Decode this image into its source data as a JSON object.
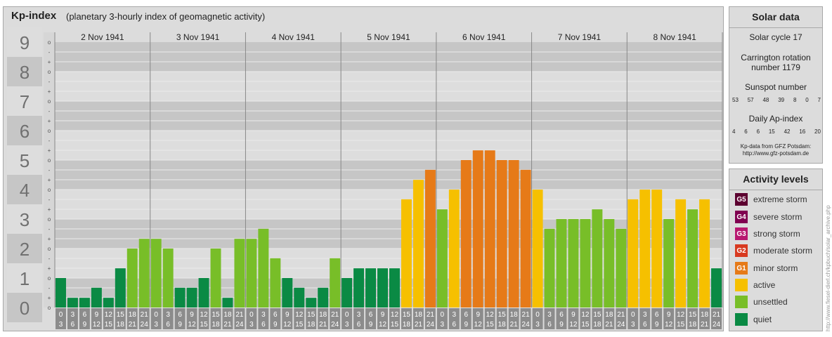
{
  "header": {
    "title": "Kp-index",
    "subtitle": "(planetary 3-hourly index of geomagnetic activity)"
  },
  "solar": {
    "title": "Solar data",
    "cycle": "Solar cycle 17",
    "carrington_line1": "Carrington rotation",
    "carrington_line2": "number 1179",
    "sunspot_title": "Sunspot number",
    "sunspot_values": [
      "53",
      "57",
      "48",
      "39",
      "8",
      "0",
      "7"
    ],
    "ap_title": "Daily Ap-index",
    "ap_values": [
      "4",
      "6",
      "6",
      "15",
      "42",
      "16",
      "20"
    ],
    "source_line1": "Kp-data from GFZ Potsdam:",
    "source_line2": "http://www.gfz-potsdam.de"
  },
  "legend": {
    "title": "Activity levels",
    "items": [
      {
        "badge": "G5",
        "label": "extreme storm",
        "color": "#5c0030"
      },
      {
        "badge": "G4",
        "label": "severe storm",
        "color": "#800050"
      },
      {
        "badge": "G3",
        "label": "strong storm",
        "color": "#b81870"
      },
      {
        "badge": "G2",
        "label": "moderate storm",
        "color": "#d83a20"
      },
      {
        "badge": "G1",
        "label": "minor storm",
        "color": "#e67a18"
      },
      {
        "badge": "",
        "label": "active",
        "color": "#f6c000"
      },
      {
        "badge": "",
        "label": "unsettled",
        "color": "#78be28"
      },
      {
        "badge": "",
        "label": "quiet",
        "color": "#0a8a44"
      }
    ]
  },
  "watermark": "http://www.fiesel-dierl.ch/kpbuch/solar_archive.php",
  "chart_data": {
    "type": "bar",
    "title": "Kp-index",
    "ylim": [
      0,
      9
    ],
    "y_ticks": [
      "0",
      "1",
      "2",
      "3",
      "4",
      "5",
      "6",
      "7",
      "8",
      "9"
    ],
    "sub_ticks": [
      "o",
      "+",
      "-"
    ],
    "days": [
      "2 Nov 1941",
      "3 Nov 1941",
      "4 Nov 1941",
      "5 Nov 1941",
      "6 Nov 1941",
      "7 Nov 1941",
      "8 Nov 1941"
    ],
    "interval_start": [
      "0",
      "3",
      "6",
      "9",
      "12",
      "15",
      "18",
      "21"
    ],
    "interval_end": [
      "3",
      "6",
      "9",
      "12",
      "15",
      "18",
      "21",
      "24"
    ],
    "values": [
      [
        1.0,
        0.33,
        0.33,
        0.67,
        0.33,
        1.33,
        2.0,
        2.33
      ],
      [
        2.33,
        2.0,
        0.67,
        0.67,
        1.0,
        2.0,
        0.33,
        2.33
      ],
      [
        2.33,
        2.67,
        1.67,
        1.0,
        0.67,
        0.33,
        0.67,
        1.67
      ],
      [
        1.0,
        1.33,
        1.33,
        1.33,
        1.33,
        3.67,
        4.33,
        4.67
      ],
      [
        3.33,
        4.0,
        5.0,
        5.33,
        5.33,
        5.0,
        5.0,
        4.67
      ],
      [
        4.0,
        2.67,
        3.0,
        3.0,
        3.0,
        3.33,
        3.0,
        2.67
      ],
      [
        3.67,
        4.0,
        4.0,
        3.0,
        3.67,
        3.33,
        3.67,
        1.33
      ]
    ],
    "colors": {
      "quiet": "#0a8a44",
      "unsettled": "#78be28",
      "active": "#f6c000",
      "g1": "#e67a18",
      "g2": "#d83a20"
    },
    "grid": true
  }
}
